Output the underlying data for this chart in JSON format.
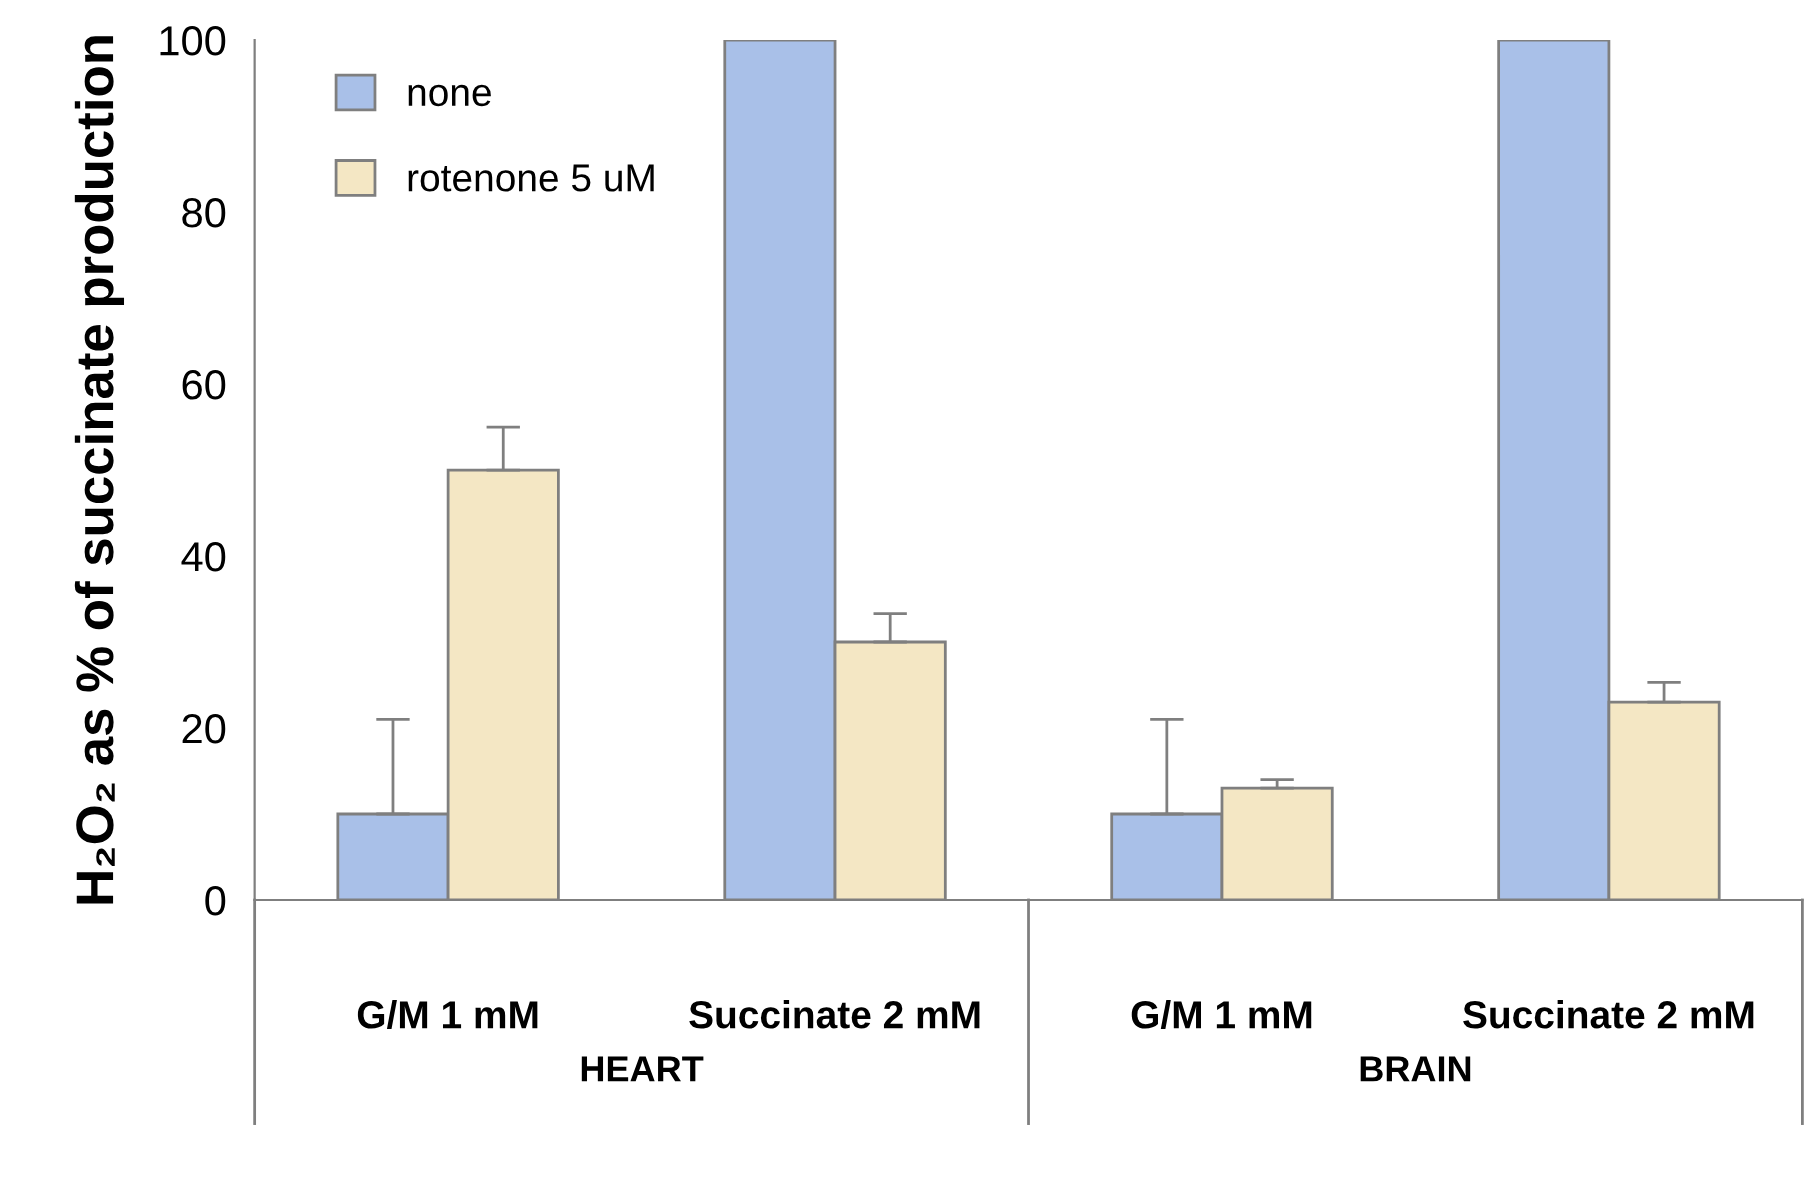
{
  "chart_data": {
    "type": "bar",
    "ylabel": "H₂O₂ as % of succinate production",
    "categories": [
      "G/M 1 mM",
      "Succinate 2 mM",
      "G/M 1 mM",
      "Succinate 2 mM"
    ],
    "series": [
      {
        "name": "none",
        "color": "#a9c0e8",
        "values": [
          10,
          100,
          10,
          100
        ],
        "errors": [
          11,
          null,
          11,
          null
        ]
      },
      {
        "name": "rotenone 5 uM",
        "color": "#f4e7c4",
        "values": [
          50,
          30,
          13,
          23
        ],
        "errors": [
          5,
          3.3,
          1,
          2.3
        ]
      }
    ],
    "annotations": [
      "HEART",
      "BRAIN"
    ],
    "ylim": [
      0,
      100
    ],
    "yticks": [
      0,
      20,
      40,
      60,
      80,
      100
    ],
    "grid": false,
    "legend": "top left"
  }
}
